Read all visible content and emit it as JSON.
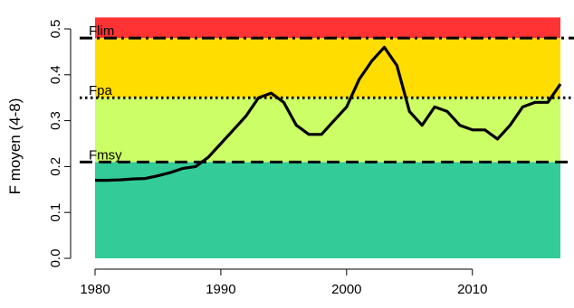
{
  "chart_data": {
    "type": "line",
    "title": "",
    "xlabel": "",
    "ylabel": "F moyen (4-8)",
    "xlim": [
      1980,
      2017
    ],
    "ylim": [
      0,
      0.5
    ],
    "x_ticks": [
      1980,
      1990,
      2000,
      2010
    ],
    "y_ticks": [
      0.0,
      0.1,
      0.2,
      0.3,
      0.4,
      0.5
    ],
    "grid": false,
    "zones": [
      {
        "from": 0.0,
        "to": 0.21,
        "color": "#33CC99"
      },
      {
        "from": 0.21,
        "to": 0.35,
        "color": "#CCFF66"
      },
      {
        "from": 0.35,
        "to": 0.48,
        "color": "#FFDD00"
      },
      {
        "from": 0.48,
        "to": 0.525,
        "color": "#FF3333"
      }
    ],
    "reference_lines": [
      {
        "label": "Flim",
        "value": 0.48,
        "style": "dashdot"
      },
      {
        "label": "Fpa",
        "value": 0.35,
        "style": "dotted"
      },
      {
        "label": "Fmsy",
        "value": 0.21,
        "style": "dashed"
      }
    ],
    "series": [
      {
        "x": [
          1980,
          1981,
          1982,
          1983,
          1984,
          1985,
          1986,
          1987,
          1988,
          1989,
          1990,
          1991,
          1992,
          1993,
          1994,
          1995,
          1996,
          1997,
          1998,
          1999,
          2000,
          2001,
          2002,
          2003,
          2004,
          2005,
          2006,
          2007,
          2008,
          2009,
          2010,
          2011,
          2012,
          2013,
          2014,
          2015,
          2016,
          2017
        ],
        "values": [
          0.17,
          0.17,
          0.171,
          0.173,
          0.174,
          0.18,
          0.187,
          0.196,
          0.2,
          0.22,
          0.25,
          0.28,
          0.31,
          0.35,
          0.36,
          0.34,
          0.29,
          0.27,
          0.27,
          0.3,
          0.33,
          0.39,
          0.43,
          0.46,
          0.42,
          0.32,
          0.29,
          0.33,
          0.32,
          0.29,
          0.28,
          0.28,
          0.26,
          0.29,
          0.33,
          0.34,
          0.34,
          0.38
        ]
      }
    ]
  }
}
